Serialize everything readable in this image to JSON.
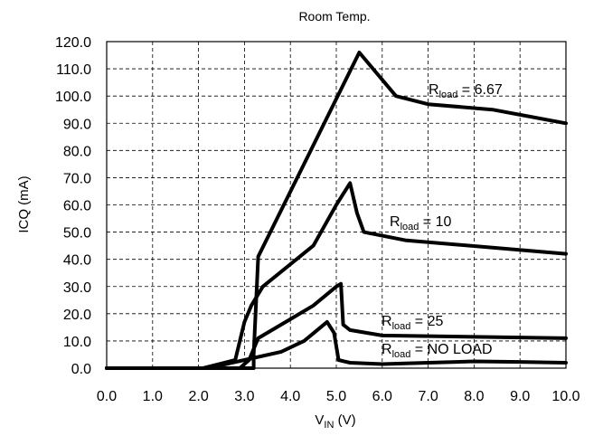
{
  "chart_data": {
    "type": "line",
    "title": "Room Temp.",
    "ylabel": "ICQ (mA)",
    "xlabel": {
      "main": "V",
      "sub": "IN",
      "unit": " (V)"
    },
    "xlim": [
      0,
      10
    ],
    "ylim": [
      0,
      120
    ],
    "x_ticks": [
      "0.0",
      "1.0",
      "2.0",
      "3.0",
      "4.0",
      "5.0",
      "6.0",
      "7.0",
      "8.0",
      "9.0",
      "10.0"
    ],
    "y_ticks": [
      "0.0",
      "10.0",
      "20.0",
      "30.0",
      "40.0",
      "50.0",
      "60.0",
      "70.0",
      "80.0",
      "90.0",
      "100.0",
      "110.0",
      "120.0"
    ],
    "grid": true,
    "series": [
      {
        "label": {
          "main": "R",
          "sub": "load",
          "rest": " = 6.67"
        },
        "x": [
          0,
          3.2,
          3.2,
          3.3,
          5.5,
          6.3,
          7.0,
          8.4,
          10.0
        ],
        "y": [
          0,
          0,
          5,
          41,
          116,
          100,
          97,
          95,
          90
        ]
      },
      {
        "label": {
          "main": "R",
          "sub": "load",
          "rest": " = 10"
        },
        "x": [
          0,
          2.1,
          2.8,
          3.0,
          3.15,
          3.4,
          4.5,
          5.0,
          5.3,
          5.45,
          5.6,
          6.5,
          10.0
        ],
        "y": [
          0,
          0,
          3,
          17,
          23,
          30,
          45,
          60,
          68,
          57,
          50,
          47,
          42
        ]
      },
      {
        "label": {
          "main": "R",
          "sub": "load",
          "rest": " = 25"
        },
        "x": [
          0,
          2.9,
          3.1,
          3.3,
          4.0,
          4.5,
          5.0,
          5.1,
          5.15,
          5.3,
          6.0,
          10.0
        ],
        "y": [
          0,
          0,
          3,
          11,
          18,
          23,
          30,
          31,
          16,
          14,
          12,
          11
        ]
      },
      {
        "label": {
          "main": "R",
          "sub": "load",
          "rest": " = NO LOAD"
        },
        "x": [
          0,
          2.2,
          3.0,
          3.8,
          4.3,
          4.8,
          4.95,
          5.05,
          5.3,
          6.0,
          7.0,
          8.0,
          9.0,
          10.0
        ],
        "y": [
          0,
          0,
          3,
          6,
          10,
          17,
          13,
          3,
          2,
          1.5,
          2,
          2.5,
          2.3,
          2
        ]
      }
    ]
  }
}
